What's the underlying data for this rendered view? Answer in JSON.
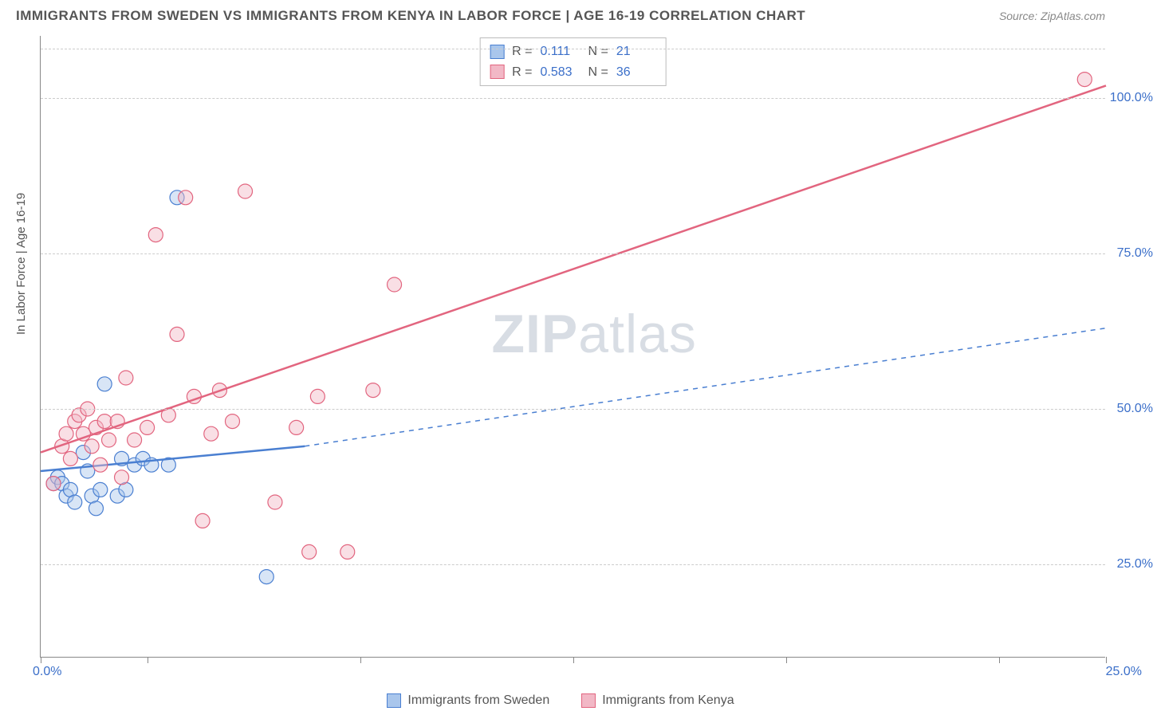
{
  "title": "IMMIGRANTS FROM SWEDEN VS IMMIGRANTS FROM KENYA IN LABOR FORCE | AGE 16-19 CORRELATION CHART",
  "source": "Source: ZipAtlas.com",
  "ylabel": "In Labor Force | Age 16-19",
  "watermark_a": "ZIP",
  "watermark_b": "atlas",
  "chart": {
    "type": "scatter-with-regression",
    "background_color": "#ffffff",
    "grid_color": "#cccccc",
    "axis_color": "#888888",
    "label_color": "#3b6fc9",
    "xlim": [
      0,
      25
    ],
    "ylim": [
      10,
      110
    ],
    "x_ticks": [
      0,
      2.5,
      7.5,
      12.5,
      17.5,
      22.5,
      25
    ],
    "x_tick_labels": {
      "0": "0.0%",
      "25": "25.0%"
    },
    "y_gridlines": [
      25,
      50,
      75,
      100,
      108
    ],
    "y_tick_labels": {
      "25": "25.0%",
      "50": "50.0%",
      "75": "75.0%",
      "100": "100.0%"
    },
    "marker_radius": 9,
    "marker_opacity": 0.45,
    "line_width": 2.5
  },
  "series": [
    {
      "key": "sweden",
      "label": "Immigrants from Sweden",
      "color_fill": "#a9c6ec",
      "color_stroke": "#4a7fd1",
      "R": "0.111",
      "N": "21",
      "regression": {
        "x1": 0,
        "y1": 40,
        "x2": 6.2,
        "y2": 44,
        "dash_to_x": 25,
        "dash_to_y": 63
      },
      "points": [
        [
          0.3,
          38
        ],
        [
          0.4,
          39
        ],
        [
          0.5,
          38
        ],
        [
          0.6,
          36
        ],
        [
          0.7,
          37
        ],
        [
          0.8,
          35
        ],
        [
          1.0,
          43
        ],
        [
          1.1,
          40
        ],
        [
          1.2,
          36
        ],
        [
          1.3,
          34
        ],
        [
          1.4,
          37
        ],
        [
          1.5,
          54
        ],
        [
          1.8,
          36
        ],
        [
          1.9,
          42
        ],
        [
          2.0,
          37
        ],
        [
          2.2,
          41
        ],
        [
          2.4,
          42
        ],
        [
          2.6,
          41
        ],
        [
          3.0,
          41
        ],
        [
          3.2,
          84
        ],
        [
          5.3,
          23
        ]
      ]
    },
    {
      "key": "kenya",
      "label": "Immigrants from Kenya",
      "color_fill": "#f2b8c6",
      "color_stroke": "#e2657f",
      "R": "0.583",
      "N": "36",
      "regression": {
        "x1": 0,
        "y1": 43,
        "x2": 25,
        "y2": 102,
        "dash_to_x": null,
        "dash_to_y": null
      },
      "points": [
        [
          0.3,
          38
        ],
        [
          0.5,
          44
        ],
        [
          0.6,
          46
        ],
        [
          0.7,
          42
        ],
        [
          0.8,
          48
        ],
        [
          0.9,
          49
        ],
        [
          1.0,
          46
        ],
        [
          1.1,
          50
        ],
        [
          1.2,
          44
        ],
        [
          1.3,
          47
        ],
        [
          1.4,
          41
        ],
        [
          1.5,
          48
        ],
        [
          1.6,
          45
        ],
        [
          1.8,
          48
        ],
        [
          1.9,
          39
        ],
        [
          2.0,
          55
        ],
        [
          2.2,
          45
        ],
        [
          2.5,
          47
        ],
        [
          2.7,
          78
        ],
        [
          3.0,
          49
        ],
        [
          3.2,
          62
        ],
        [
          3.4,
          84
        ],
        [
          3.6,
          52
        ],
        [
          3.8,
          32
        ],
        [
          4.0,
          46
        ],
        [
          4.2,
          53
        ],
        [
          4.5,
          48
        ],
        [
          4.8,
          85
        ],
        [
          5.5,
          35
        ],
        [
          6.0,
          47
        ],
        [
          6.3,
          27
        ],
        [
          6.5,
          52
        ],
        [
          7.2,
          27
        ],
        [
          7.8,
          53
        ],
        [
          8.3,
          70
        ],
        [
          24.5,
          103
        ]
      ]
    }
  ],
  "stats_box": {
    "r_label": "R  =",
    "n_label": "N  ="
  }
}
